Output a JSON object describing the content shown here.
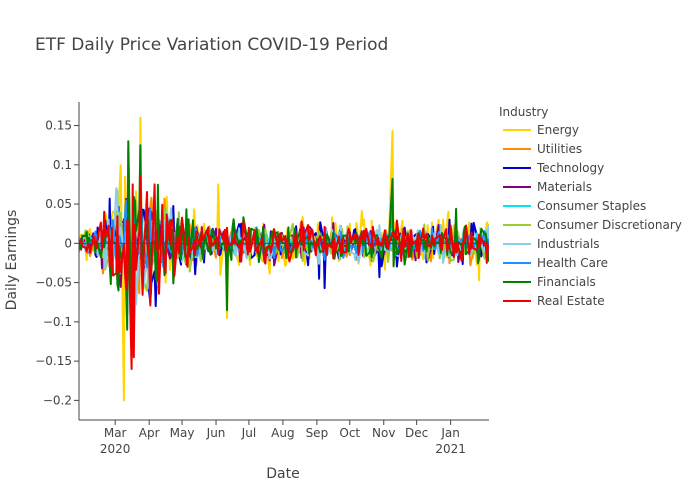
{
  "chart_data": {
    "type": "line",
    "title": "ETF Daily Price Variation COVID-19 Period",
    "xlabel": "Date",
    "ylabel": "Daily Earnings",
    "x_range": [
      "2020-01-28",
      "2021-02-05"
    ],
    "ylim": [
      -0.225,
      0.18
    ],
    "x_ticks": [
      {
        "date": "2020-03-01",
        "label": "Mar",
        "sub": "2020"
      },
      {
        "date": "2020-04-01",
        "label": "Apr",
        "sub": ""
      },
      {
        "date": "2020-05-01",
        "label": "May",
        "sub": ""
      },
      {
        "date": "2020-06-01",
        "label": "Jun",
        "sub": ""
      },
      {
        "date": "2020-07-01",
        "label": "Jul",
        "sub": ""
      },
      {
        "date": "2020-08-01",
        "label": "Aug",
        "sub": ""
      },
      {
        "date": "2020-09-01",
        "label": "Sep",
        "sub": ""
      },
      {
        "date": "2020-10-01",
        "label": "Oct",
        "sub": ""
      },
      {
        "date": "2020-11-01",
        "label": "Nov",
        "sub": ""
      },
      {
        "date": "2020-12-01",
        "label": "Dec",
        "sub": ""
      },
      {
        "date": "2021-01-01",
        "label": "Jan",
        "sub": "2021"
      }
    ],
    "y_ticks": [
      {
        "value": 0.15,
        "label": "0.15"
      },
      {
        "value": 0.1,
        "label": "0.1"
      },
      {
        "value": 0.05,
        "label": "0.05"
      },
      {
        "value": 0,
        "label": "0"
      },
      {
        "value": -0.05,
        "label": "−0.05"
      },
      {
        "value": -0.1,
        "label": "−0.1"
      },
      {
        "value": -0.15,
        "label": "−0.15"
      },
      {
        "value": -0.2,
        "label": "−0.2"
      }
    ],
    "legend_title": "Industry",
    "legend_position": "right",
    "series": [
      {
        "name": "Energy",
        "color": "#FFD400",
        "amp": 1.45,
        "seed": 1,
        "extremes": [
          [
            "2020-03-09",
            -0.2
          ],
          [
            "2020-03-10",
            0.085
          ],
          [
            "2020-03-24",
            0.16
          ],
          [
            "2020-03-18",
            -0.125
          ],
          [
            "2020-06-03",
            0.075
          ],
          [
            "2020-06-11",
            -0.095
          ],
          [
            "2020-11-09",
            0.143
          ],
          [
            "2020-11-10",
            -0.03
          ]
        ]
      },
      {
        "name": "Utilities",
        "color": "#FF8C00",
        "amp": 0.9,
        "seed": 2,
        "extremes": [
          [
            "2020-03-13",
            0.12
          ],
          [
            "2020-03-16",
            -0.11
          ],
          [
            "2020-03-24",
            0.1
          ]
        ]
      },
      {
        "name": "Technology",
        "color": "#0000CD",
        "amp": 0.95,
        "seed": 3,
        "extremes": [
          [
            "2020-03-12",
            -0.09
          ],
          [
            "2020-03-13",
            0.065
          ],
          [
            "2020-03-16",
            -0.085
          ],
          [
            "2020-03-24",
            0.085
          ],
          [
            "2020-09-08",
            -0.057
          ],
          [
            "2020-10-28",
            -0.043
          ],
          [
            "2020-09-03",
            -0.045
          ]
        ]
      },
      {
        "name": "Materials",
        "color": "#800080",
        "amp": 0.9,
        "seed": 4,
        "extremes": [
          [
            "2020-03-16",
            -0.1
          ],
          [
            "2020-03-24",
            0.09
          ]
        ]
      },
      {
        "name": "Consumer Staples",
        "color": "#00E5EE",
        "amp": 0.6,
        "seed": 5,
        "extremes": [
          [
            "2020-03-13",
            0.07
          ],
          [
            "2020-03-16",
            -0.08
          ]
        ]
      },
      {
        "name": "Consumer Discretionary",
        "color": "#9ACD32",
        "amp": 0.9,
        "seed": 6,
        "extremes": [
          [
            "2020-03-16",
            -0.1
          ],
          [
            "2020-03-24",
            0.08
          ]
        ]
      },
      {
        "name": "Industrials",
        "color": "#87CEEB",
        "amp": 0.9,
        "seed": 7,
        "extremes": [
          [
            "2020-03-16",
            -0.11
          ],
          [
            "2020-03-24",
            0.1
          ]
        ]
      },
      {
        "name": "Health Care",
        "color": "#1E90FF",
        "amp": 0.7,
        "seed": 8,
        "extremes": [
          [
            "2020-03-13",
            0.06
          ],
          [
            "2020-03-16",
            -0.09
          ],
          [
            "2020-11-09",
            0.045
          ]
        ]
      },
      {
        "name": "Financials",
        "color": "#008000",
        "amp": 1.1,
        "seed": 9,
        "extremes": [
          [
            "2020-03-12",
            -0.11
          ],
          [
            "2020-03-13",
            0.13
          ],
          [
            "2020-03-16",
            -0.14
          ],
          [
            "2020-03-24",
            0.125
          ],
          [
            "2020-03-11",
            -0.05
          ],
          [
            "2020-06-11",
            -0.085
          ],
          [
            "2020-11-09",
            0.082
          ],
          [
            "2021-01-06",
            0.044
          ]
        ]
      },
      {
        "name": "Real Estate",
        "color": "#EE0000",
        "amp": 1.0,
        "seed": 10,
        "extremes": [
          [
            "2020-03-16",
            -0.16
          ],
          [
            "2020-03-17",
            0.075
          ],
          [
            "2020-03-24",
            0.085
          ],
          [
            "2020-03-18",
            -0.145
          ],
          [
            "2020-04-06",
            0.075
          ]
        ]
      }
    ]
  }
}
